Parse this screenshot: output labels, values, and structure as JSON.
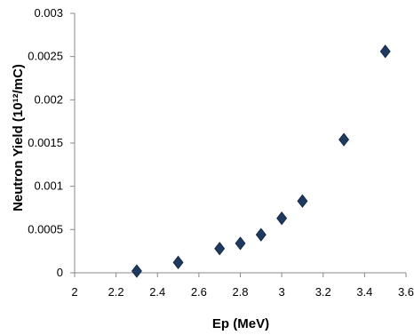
{
  "chart_data": {
    "type": "scatter",
    "title": "",
    "xlabel": "Ep (MeV)",
    "ylabel": "Neutron Yield (10¹²/mC)",
    "xlim": [
      2,
      3.6
    ],
    "ylim": [
      0,
      0.003
    ],
    "x_ticks": [
      2,
      2.2,
      2.4,
      2.6,
      2.8,
      3,
      3.2,
      3.4,
      3.6
    ],
    "x_tick_labels": [
      "2",
      "2.2",
      "2.4",
      "2.6",
      "2.8",
      "3",
      "3.2",
      "3.4",
      "3.6"
    ],
    "y_ticks": [
      0,
      0.0005,
      0.001,
      0.0015,
      0.002,
      0.0025,
      0.003
    ],
    "y_tick_labels": [
      "0",
      "0.0005",
      "0.001",
      "0.0015",
      "0.002",
      "0.0025",
      "0.003"
    ],
    "grid": false,
    "legend": "none",
    "marker": "diamond",
    "marker_color": "#1f3a5f",
    "series": [
      {
        "x": [
          2.3,
          2.5,
          2.7,
          2.8,
          2.9,
          3.0,
          3.1,
          3.3,
          3.5
        ],
        "y": [
          2e-05,
          0.00012,
          0.00028,
          0.00034,
          0.00044,
          0.00063,
          0.00083,
          0.00154,
          0.00256
        ]
      }
    ]
  }
}
